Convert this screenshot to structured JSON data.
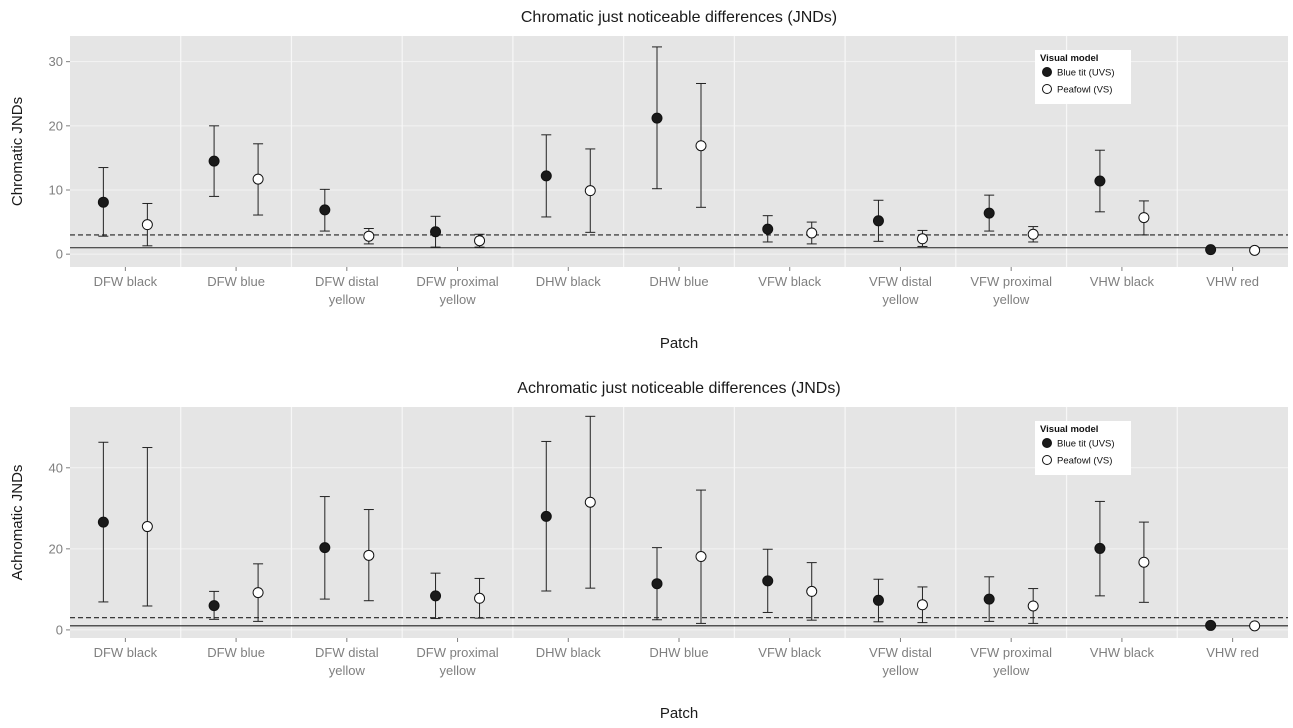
{
  "chart_data": [
    {
      "type": "scatter",
      "title": "Chromatic just noticeable differences (JNDs)",
      "xlabel": "Patch",
      "ylabel": "Chromatic JNDs",
      "ylim": [
        -2,
        34
      ],
      "yticks": [
        0,
        10,
        20,
        30
      ],
      "categories": [
        "DFW black",
        "DFW blue",
        "DFW distal yellow",
        "DFW proximal yellow",
        "DHW black",
        "DHW blue",
        "VFW black",
        "VFW distal yellow",
        "VFW proximal yellow",
        "VHW black",
        "VHW red"
      ],
      "category_label_lines": [
        [
          "DFW black"
        ],
        [
          "DFW blue"
        ],
        [
          "DFW distal",
          "yellow"
        ],
        [
          "DFW proximal",
          "yellow"
        ],
        [
          "DHW black"
        ],
        [
          "DHW blue"
        ],
        [
          "VFW black"
        ],
        [
          "VFW distal",
          "yellow"
        ],
        [
          "VFW proximal",
          "yellow"
        ],
        [
          "VHW black"
        ],
        [
          "VHW red"
        ]
      ],
      "reference_lines": [
        {
          "y": 1,
          "style": "solid"
        },
        {
          "y": 3,
          "style": "dashed"
        }
      ],
      "legend": {
        "title": "Visual model",
        "position": "top-right"
      },
      "series": [
        {
          "name": "Blue tit (UVS)",
          "marker": "filled",
          "color": "#1a1a1a",
          "values": [
            8.1,
            14.5,
            6.9,
            3.5,
            12.2,
            21.2,
            3.9,
            5.2,
            6.4,
            11.4,
            0.7
          ],
          "lower": [
            2.8,
            9.0,
            3.6,
            1.1,
            5.8,
            10.2,
            1.9,
            2.0,
            3.6,
            6.6,
            0.5
          ],
          "upper": [
            13.5,
            20.0,
            10.1,
            5.9,
            18.6,
            32.3,
            6.0,
            8.4,
            9.2,
            16.2,
            0.9
          ]
        },
        {
          "name": "Peafowl (VS)",
          "marker": "open",
          "color": "#ffffff",
          "values": [
            4.6,
            11.7,
            2.8,
            2.1,
            9.9,
            16.9,
            3.3,
            2.4,
            3.1,
            5.7,
            0.6
          ],
          "lower": [
            1.3,
            6.1,
            1.6,
            1.1,
            3.4,
            7.3,
            1.6,
            1.2,
            1.9,
            3.0,
            0.4
          ],
          "upper": [
            7.9,
            17.2,
            4.0,
            3.1,
            16.4,
            26.6,
            5.0,
            3.7,
            4.3,
            8.3,
            0.8
          ]
        }
      ]
    },
    {
      "type": "scatter",
      "title": "Achromatic just noticeable differences (JNDs)",
      "xlabel": "Patch",
      "ylabel": "Achromatic JNDs",
      "ylim": [
        -2,
        55
      ],
      "yticks": [
        0,
        20,
        40
      ],
      "categories": [
        "DFW black",
        "DFW blue",
        "DFW distal yellow",
        "DFW proximal yellow",
        "DHW black",
        "DHW blue",
        "VFW black",
        "VFW distal yellow",
        "VFW proximal yellow",
        "VHW black",
        "VHW red"
      ],
      "category_label_lines": [
        [
          "DFW black"
        ],
        [
          "DFW blue"
        ],
        [
          "DFW distal",
          "yellow"
        ],
        [
          "DFW proximal",
          "yellow"
        ],
        [
          "DHW black"
        ],
        [
          "DHW blue"
        ],
        [
          "VFW black"
        ],
        [
          "VFW distal",
          "yellow"
        ],
        [
          "VFW proximal",
          "yellow"
        ],
        [
          "VHW black"
        ],
        [
          "VHW red"
        ]
      ],
      "reference_lines": [
        {
          "y": 1,
          "style": "solid"
        },
        {
          "y": 3,
          "style": "dashed"
        }
      ],
      "legend": {
        "title": "Visual model",
        "position": "top-right"
      },
      "series": [
        {
          "name": "Blue tit (UVS)",
          "marker": "filled",
          "color": "#1a1a1a",
          "values": [
            26.6,
            6.0,
            20.3,
            8.4,
            28.0,
            11.4,
            12.1,
            7.3,
            7.6,
            20.1,
            1.1
          ],
          "lower": [
            6.9,
            2.6,
            7.6,
            2.8,
            9.6,
            2.5,
            4.3,
            2.0,
            2.1,
            8.4,
            0.6
          ],
          "upper": [
            46.3,
            9.5,
            32.9,
            14.0,
            46.5,
            20.3,
            19.9,
            12.5,
            13.1,
            31.7,
            1.6
          ]
        },
        {
          "name": "Peafowl (VS)",
          "marker": "open",
          "color": "#ffffff",
          "values": [
            25.5,
            9.2,
            18.4,
            7.8,
            31.5,
            18.1,
            9.5,
            6.2,
            5.9,
            16.7,
            1.0
          ],
          "lower": [
            5.9,
            2.1,
            7.2,
            2.9,
            10.3,
            1.6,
            2.4,
            1.8,
            1.6,
            6.8,
            0.5
          ],
          "upper": [
            45.0,
            16.3,
            29.7,
            12.7,
            52.7,
            34.5,
            16.6,
            10.6,
            10.2,
            26.6,
            1.5
          ]
        }
      ]
    }
  ]
}
